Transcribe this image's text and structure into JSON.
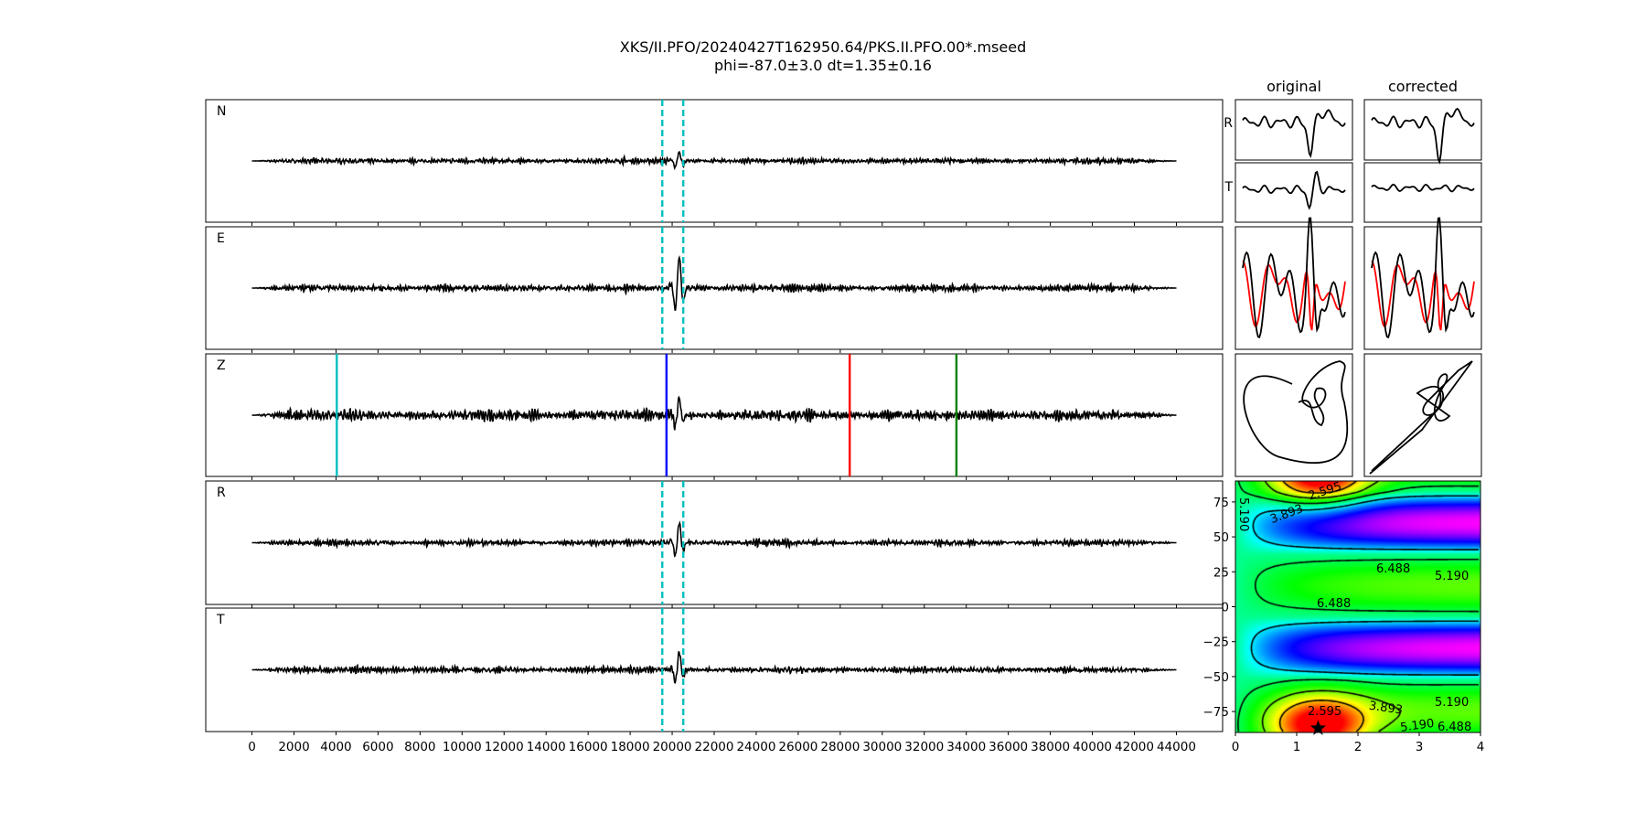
{
  "title": {
    "line1": "XKS/II.PFO/20240427T162950.64/PKS.II.PFO.00*.mseed",
    "line2": "phi=-87.0±3.0 dt=1.35±0.16"
  },
  "chart_data": [
    {
      "type": "line",
      "panels": [
        {
          "label": "N",
          "window_markers": [
            19530,
            20530
          ],
          "window_color": "#00bfbf"
        },
        {
          "label": "E",
          "window_markers": [
            19530,
            20530
          ],
          "window_color": "#00bfbf"
        },
        {
          "label": "Z",
          "phase_markers": [
            {
              "x": 4036,
              "color": "#00bfbf"
            },
            {
              "x": 19730,
              "color": "#0000ff"
            },
            {
              "x": 28450,
              "color": "#ff0000"
            },
            {
              "x": 33530,
              "color": "#008000"
            }
          ]
        },
        {
          "label": "R",
          "window_markers": [
            19530,
            20530
          ],
          "window_color": "#00bfbf"
        },
        {
          "label": "T",
          "window_markers": [
            19530,
            20530
          ],
          "window_color": "#00bfbf"
        }
      ],
      "x_range": [
        0,
        44000
      ],
      "xlim": [
        -2200,
        46200
      ],
      "xticks": [
        0,
        2000,
        4000,
        6000,
        8000,
        10000,
        12000,
        14000,
        16000,
        18000,
        20000,
        22000,
        24000,
        26000,
        28000,
        30000,
        32000,
        34000,
        36000,
        38000,
        40000,
        42000,
        44000
      ],
      "trace_color": "#000000"
    },
    {
      "type": "line",
      "columns": [
        "original",
        "corrected"
      ],
      "rows": [
        "R",
        "T"
      ],
      "overlay_colors": [
        "#000000",
        "#ff0000"
      ],
      "particle_motion": true
    },
    {
      "type": "heatmap",
      "xlim": [
        0,
        4
      ],
      "ylim": [
        -90,
        90
      ],
      "xticks": [
        0,
        1,
        2,
        3,
        4
      ],
      "yticks": [
        -75,
        -50,
        -25,
        0,
        25,
        50,
        75
      ],
      "colormap": "hsv",
      "contour_levels": [
        "2.595",
        "3.893",
        "5.190",
        "6.488"
      ],
      "best": {
        "dt": 1.35,
        "phi": -87.0
      }
    }
  ]
}
